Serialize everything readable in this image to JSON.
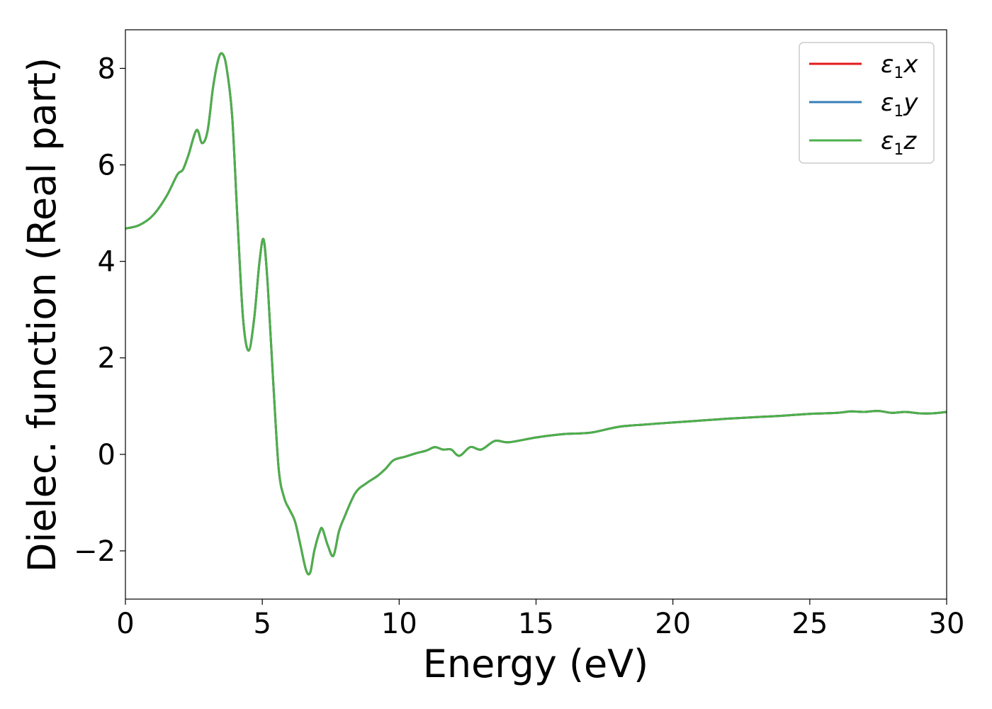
{
  "chart_data": {
    "type": "line",
    "xlabel": "Energy (eV)",
    "ylabel": "Dielec. function (Real part)",
    "xlim": [
      0,
      30
    ],
    "ylim": [
      -3.0,
      8.8
    ],
    "xticks": [
      0,
      5,
      10,
      15,
      20,
      25,
      30
    ],
    "xtick_labels": [
      "0",
      "5",
      "10",
      "15",
      "20",
      "25",
      "30"
    ],
    "yticks": [
      -2,
      0,
      2,
      4,
      6,
      8
    ],
    "ytick_labels": [
      "−2",
      "0",
      "2",
      "4",
      "6",
      "8"
    ],
    "grid": false,
    "legend_position": "top-right",
    "x": [
      0,
      0.5,
      1.0,
      1.5,
      1.9,
      2.1,
      2.3,
      2.6,
      2.8,
      3.0,
      3.2,
      3.4,
      3.55,
      3.7,
      3.9,
      4.1,
      4.3,
      4.5,
      4.7,
      4.9,
      5.05,
      5.2,
      5.4,
      5.6,
      5.8,
      6.0,
      6.2,
      6.4,
      6.6,
      6.75,
      6.9,
      7.1,
      7.2,
      7.4,
      7.6,
      7.8,
      8.0,
      8.4,
      8.8,
      9.2,
      9.5,
      9.8,
      10.2,
      10.6,
      11.0,
      11.3,
      11.6,
      11.9,
      12.2,
      12.6,
      13.0,
      13.5,
      14.0,
      15.0,
      16.0,
      17.0,
      18.0,
      19.0,
      20.0,
      21.0,
      22.0,
      23.0,
      24.0,
      25.0,
      26.0,
      26.5,
      27.0,
      27.5,
      28.0,
      28.5,
      29.0,
      29.5,
      30.0
    ],
    "series": [
      {
        "name": "ε1x",
        "color": "#e41a1c",
        "values": [
          4.68,
          4.75,
          4.95,
          5.35,
          5.8,
          5.9,
          6.2,
          6.72,
          6.45,
          6.7,
          7.6,
          8.2,
          8.3,
          8.0,
          7.0,
          4.8,
          2.8,
          2.15,
          2.8,
          4.0,
          4.45,
          3.5,
          1.5,
          -0.3,
          -0.9,
          -1.15,
          -1.4,
          -1.9,
          -2.4,
          -2.45,
          -2.0,
          -1.6,
          -1.55,
          -1.9,
          -2.1,
          -1.6,
          -1.3,
          -0.8,
          -0.6,
          -0.45,
          -0.3,
          -0.12,
          -0.05,
          0.02,
          0.08,
          0.15,
          0.1,
          0.1,
          -0.03,
          0.15,
          0.1,
          0.28,
          0.25,
          0.35,
          0.42,
          0.45,
          0.57,
          0.62,
          0.66,
          0.7,
          0.74,
          0.77,
          0.8,
          0.84,
          0.86,
          0.89,
          0.88,
          0.9,
          0.86,
          0.88,
          0.85,
          0.85,
          0.88
        ]
      },
      {
        "name": "ε1y",
        "color": "#377eb8",
        "values": [
          4.68,
          4.75,
          4.95,
          5.35,
          5.8,
          5.9,
          6.2,
          6.72,
          6.45,
          6.7,
          7.6,
          8.2,
          8.3,
          8.0,
          7.0,
          4.8,
          2.8,
          2.15,
          2.8,
          4.0,
          4.45,
          3.5,
          1.5,
          -0.3,
          -0.9,
          -1.15,
          -1.4,
          -1.9,
          -2.4,
          -2.45,
          -2.0,
          -1.6,
          -1.55,
          -1.9,
          -2.1,
          -1.6,
          -1.3,
          -0.8,
          -0.6,
          -0.45,
          -0.3,
          -0.12,
          -0.05,
          0.02,
          0.08,
          0.15,
          0.1,
          0.1,
          -0.03,
          0.15,
          0.1,
          0.28,
          0.25,
          0.35,
          0.42,
          0.45,
          0.57,
          0.62,
          0.66,
          0.7,
          0.74,
          0.77,
          0.8,
          0.84,
          0.86,
          0.89,
          0.88,
          0.9,
          0.86,
          0.88,
          0.85,
          0.85,
          0.88
        ]
      },
      {
        "name": "ε1z",
        "color": "#4daf4a",
        "values": [
          4.68,
          4.75,
          4.95,
          5.35,
          5.8,
          5.9,
          6.2,
          6.72,
          6.45,
          6.7,
          7.6,
          8.2,
          8.3,
          8.0,
          7.0,
          4.8,
          2.8,
          2.15,
          2.8,
          4.0,
          4.45,
          3.5,
          1.5,
          -0.3,
          -0.9,
          -1.15,
          -1.4,
          -1.9,
          -2.4,
          -2.45,
          -2.0,
          -1.6,
          -1.55,
          -1.9,
          -2.1,
          -1.6,
          -1.3,
          -0.8,
          -0.6,
          -0.45,
          -0.3,
          -0.12,
          -0.05,
          0.02,
          0.08,
          0.15,
          0.1,
          0.1,
          -0.03,
          0.15,
          0.1,
          0.28,
          0.25,
          0.35,
          0.42,
          0.45,
          0.57,
          0.62,
          0.66,
          0.7,
          0.74,
          0.77,
          0.8,
          0.84,
          0.86,
          0.89,
          0.88,
          0.9,
          0.86,
          0.88,
          0.85,
          0.85,
          0.88
        ]
      }
    ],
    "legend": [
      {
        "symbol": "ε",
        "sub": "1",
        "var": "x",
        "color": "#e41a1c"
      },
      {
        "symbol": "ε",
        "sub": "1",
        "var": "y",
        "color": "#377eb8"
      },
      {
        "symbol": "ε",
        "sub": "1",
        "var": "z",
        "color": "#4daf4a"
      }
    ]
  }
}
